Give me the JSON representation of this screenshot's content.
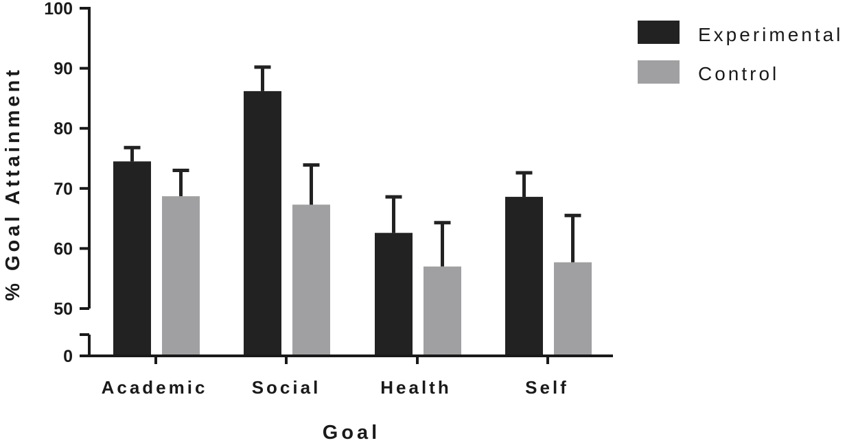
{
  "chart_data": {
    "type": "bar",
    "xlabel": "Goal",
    "ylabel": "% Goal Attainment",
    "categories": [
      "Academic",
      "Social",
      "Health",
      "Self"
    ],
    "series": [
      {
        "name": "Experimental",
        "color": "#222222",
        "values": [
          74.5,
          86.2,
          62.6,
          68.6
        ],
        "errors": [
          2.3,
          4.0,
          6.0,
          4.0
        ]
      },
      {
        "name": "Control",
        "color": "#a0a0a2",
        "values": [
          68.7,
          67.3,
          57.0,
          57.7
        ],
        "errors": [
          4.3,
          6.6,
          7.3,
          7.8
        ]
      }
    ],
    "ylim": [
      0,
      100
    ],
    "axis_break": [
      5,
      50
    ],
    "yticks": [
      0,
      50,
      60,
      70,
      80,
      90,
      100
    ],
    "legend_position": "top-right",
    "grid": false
  }
}
